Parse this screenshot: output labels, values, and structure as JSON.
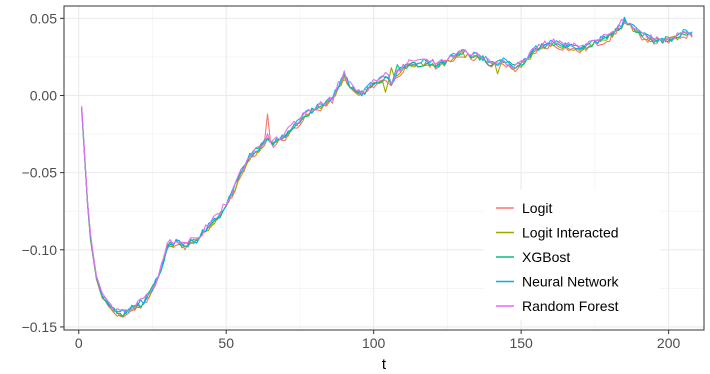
{
  "chart_data": {
    "type": "line",
    "title": "",
    "xlabel": "t",
    "ylabel": "",
    "xlim": [
      -5,
      212
    ],
    "ylim": [
      -0.152,
      0.058
    ],
    "x_ticks": [
      0,
      50,
      100,
      150,
      200
    ],
    "x_tick_labels": [
      "0",
      "50",
      "100",
      "150",
      "200"
    ],
    "y_ticks": [
      -0.15,
      -0.1,
      -0.05,
      0.0,
      0.05
    ],
    "y_tick_labels": [
      "−0.15",
      "−0.10",
      "−0.05",
      "0.00",
      "0.05"
    ],
    "grid": true,
    "legend_position": "bottom-right",
    "key_x": [
      1,
      2,
      3,
      4,
      6,
      8,
      10,
      12,
      14,
      16,
      18,
      20,
      22,
      24,
      26,
      28,
      30,
      33,
      36,
      40,
      44,
      48,
      52,
      55,
      58,
      62,
      64,
      66,
      70,
      74,
      78,
      82,
      86,
      90,
      92,
      94,
      96,
      98,
      100,
      102,
      104,
      106,
      108,
      110,
      112,
      115,
      118,
      122,
      126,
      130,
      133,
      136,
      140,
      144,
      148,
      151,
      155,
      160,
      165,
      170,
      175,
      180,
      185,
      188,
      190,
      195,
      200,
      205,
      208
    ],
    "key_y": [
      -0.008,
      -0.04,
      -0.07,
      -0.092,
      -0.118,
      -0.13,
      -0.135,
      -0.14,
      -0.142,
      -0.141,
      -0.138,
      -0.136,
      -0.134,
      -0.128,
      -0.122,
      -0.112,
      -0.098,
      -0.094,
      -0.097,
      -0.094,
      -0.085,
      -0.077,
      -0.064,
      -0.05,
      -0.04,
      -0.033,
      -0.028,
      -0.031,
      -0.026,
      -0.018,
      -0.011,
      -0.007,
      -0.002,
      0.013,
      0.006,
      0.002,
      0.001,
      0.004,
      0.008,
      0.01,
      0.012,
      0.008,
      0.014,
      0.018,
      0.02,
      0.02,
      0.022,
      0.02,
      0.024,
      0.028,
      0.026,
      0.025,
      0.02,
      0.022,
      0.018,
      0.022,
      0.03,
      0.034,
      0.032,
      0.03,
      0.034,
      0.038,
      0.048,
      0.044,
      0.04,
      0.036,
      0.036,
      0.04,
      0.04
    ],
    "series": [
      {
        "name": "Logit",
        "color": "#F8766D",
        "spikes": [
          [
            64,
            -0.012
          ],
          [
            65,
            -0.03
          ]
        ]
      },
      {
        "name": "Logit Interacted",
        "color": "#A3A500",
        "spikes": [
          [
            104,
            0.002
          ],
          [
            106,
            0.018
          ],
          [
            130,
            0.029
          ],
          [
            142,
            0.014
          ]
        ]
      },
      {
        "name": "XGBost",
        "color": "#00BF7D",
        "spikes": [
          [
            108,
            0.02
          ]
        ]
      },
      {
        "name": "Neural Network",
        "color": "#00B0F6",
        "spikes": []
      },
      {
        "name": "Random Forest",
        "color": "#E76BF3",
        "spikes": []
      }
    ]
  }
}
